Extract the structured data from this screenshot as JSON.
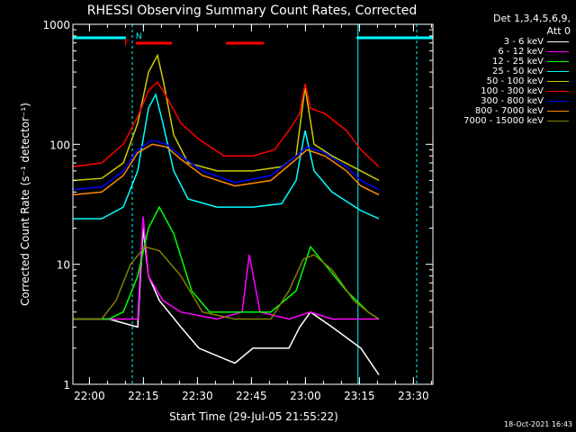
{
  "chart_data": {
    "type": "line",
    "title": "RHESSI Observing Summary Count Rates, Corrected",
    "ylabel": "Corrected Count Rate (s⁻¹ detector⁻¹)",
    "xlabel": "Start Time (29-Jul-05 21:55:22)",
    "yscale": "log",
    "ylim": [
      1,
      1000
    ],
    "xlim_minutes_since_start": [
      0,
      100
    ],
    "y_ticks": [
      "1",
      "10",
      "100",
      "1000"
    ],
    "x_ticks": [
      {
        "label": "22:00",
        "t": 4.6
      },
      {
        "label": "22:15",
        "t": 19.6
      },
      {
        "label": "22:30",
        "t": 34.6
      },
      {
        "label": "22:45",
        "t": 49.6
      },
      {
        "label": "23:00",
        "t": 64.6
      },
      {
        "label": "23:15",
        "t": 79.6
      },
      {
        "label": "23:30",
        "t": 94.6
      }
    ],
    "detectors": "Det 1,3,4,5,6,9,",
    "attenuator": "Att 0",
    "timestamp": "18-Oct-2021 16:43",
    "flags": [
      {
        "label": "F",
        "color": "#ff0000"
      },
      {
        "label": "N",
        "color": "#00ffff"
      }
    ],
    "series": [
      {
        "name": "3 - 6 keV",
        "color": "#ffffff",
        "x": [
          0,
          10,
          18,
          19.5,
          21,
          24,
          30,
          35,
          45,
          50,
          60,
          63,
          66,
          72,
          80,
          85
        ],
        "y": [
          3.5,
          3.5,
          3,
          20,
          8,
          5,
          3,
          2,
          1.5,
          2,
          2,
          3,
          4,
          3,
          2,
          1.2
        ]
      },
      {
        "name": "6 - 12 keV",
        "color": "#ff00ff",
        "x": [
          0,
          15,
          18,
          19.5,
          21,
          25,
          30,
          40,
          47,
          49,
          52,
          60,
          66,
          72,
          78,
          85
        ],
        "y": [
          3.5,
          3.5,
          3.5,
          25,
          8,
          5,
          4,
          3.5,
          4,
          12,
          4,
          3.5,
          4,
          3.5,
          3.5,
          3.5
        ]
      },
      {
        "name": "12 - 25 keV",
        "color": "#00ff00",
        "x": [
          0,
          10,
          14,
          18,
          21,
          24,
          28,
          33,
          38,
          45,
          55,
          62,
          66,
          70,
          76,
          82,
          85
        ],
        "y": [
          3.5,
          3.5,
          4,
          8,
          20,
          30,
          18,
          6,
          4,
          4,
          4,
          6,
          14,
          10,
          6,
          4,
          3.5
        ]
      },
      {
        "name": "25 - 50 keV",
        "color": "#00ffff",
        "x": [
          0,
          8,
          14,
          18,
          21,
          23,
          25,
          28,
          32,
          40,
          50,
          58,
          62,
          64.5,
          67,
          72,
          80,
          85
        ],
        "y": [
          24,
          24,
          30,
          60,
          200,
          260,
          150,
          60,
          35,
          30,
          30,
          32,
          50,
          130,
          60,
          40,
          28,
          24
        ]
      },
      {
        "name": "50 - 100 keV",
        "color": "#cccc00",
        "x": [
          0,
          8,
          14,
          18,
          21,
          23.5,
          25,
          28,
          32,
          40,
          50,
          58,
          62,
          64.5,
          67,
          72,
          80,
          85
        ],
        "y": [
          50,
          52,
          70,
          150,
          400,
          550,
          350,
          120,
          70,
          60,
          60,
          65,
          80,
          300,
          100,
          80,
          60,
          50
        ]
      },
      {
        "name": "100 - 300 keV",
        "color": "#ff0000",
        "x": [
          0,
          8,
          14,
          18,
          21,
          23.5,
          26,
          30,
          35,
          42,
          50,
          56,
          60,
          63,
          64.5,
          66,
          70,
          76,
          80,
          85
        ],
        "y": [
          65,
          70,
          100,
          170,
          280,
          330,
          250,
          150,
          110,
          80,
          80,
          90,
          130,
          180,
          320,
          200,
          180,
          130,
          90,
          65
        ]
      },
      {
        "name": "300 - 800 keV",
        "color": "#0000ff",
        "x": [
          0,
          8,
          14,
          18,
          22,
          26,
          30,
          36,
          45,
          55,
          62,
          65,
          70,
          76,
          80,
          85
        ],
        "y": [
          42,
          44,
          60,
          90,
          108,
          100,
          80,
          60,
          48,
          55,
          80,
          95,
          85,
          65,
          50,
          42
        ]
      },
      {
        "name": "800 - 7000 keV",
        "color": "#ff8800",
        "x": [
          0,
          8,
          14,
          18,
          22,
          26,
          30,
          36,
          45,
          55,
          62,
          65,
          70,
          76,
          80,
          85
        ],
        "y": [
          38,
          40,
          55,
          85,
          100,
          95,
          75,
          55,
          45,
          50,
          75,
          90,
          80,
          60,
          45,
          38
        ]
      },
      {
        "name": "7000 - 15000 keV",
        "color": "#808000",
        "x": [
          0,
          8,
          12,
          16,
          20,
          24,
          30,
          36,
          45,
          55,
          60,
          64,
          67,
          72,
          78,
          82,
          85
        ],
        "y": [
          3.5,
          3.5,
          5,
          10,
          14,
          13,
          8,
          4,
          3.5,
          3.5,
          6,
          11,
          12,
          9,
          5,
          4,
          3.5
        ]
      }
    ]
  }
}
